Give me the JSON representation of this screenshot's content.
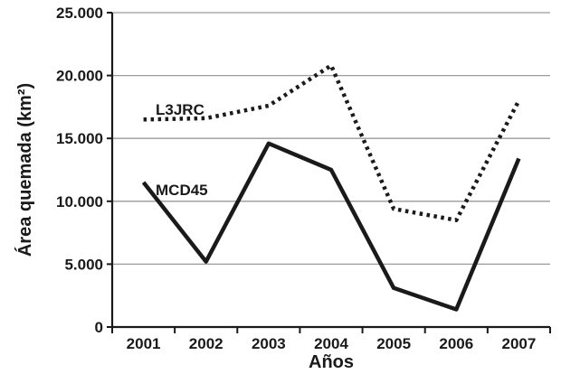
{
  "chart_data": {
    "type": "line",
    "x": [
      "2001",
      "2002",
      "2003",
      "2004",
      "2005",
      "2006",
      "2007"
    ],
    "xlabel": "Años",
    "ylabel": "Área quemada (km²)",
    "ylim": [
      0,
      25000
    ],
    "yticks": [
      0,
      5000,
      10000,
      15000,
      20000,
      25000
    ],
    "ytick_labels": [
      "0",
      "5.000",
      "10.000",
      "15.000",
      "20.000",
      "25.000"
    ],
    "grid": "horizontal",
    "legend": "inline labels",
    "series": [
      {
        "name": "L3JRC",
        "style": "dotted",
        "color": "#1a1a1a",
        "values": [
          16500,
          16600,
          17600,
          20800,
          9400,
          8500,
          18000
        ]
      },
      {
        "name": "MCD45",
        "style": "solid",
        "color": "#1a1a1a",
        "values": [
          11500,
          5200,
          14600,
          12500,
          3100,
          1400,
          13400
        ]
      }
    ]
  }
}
